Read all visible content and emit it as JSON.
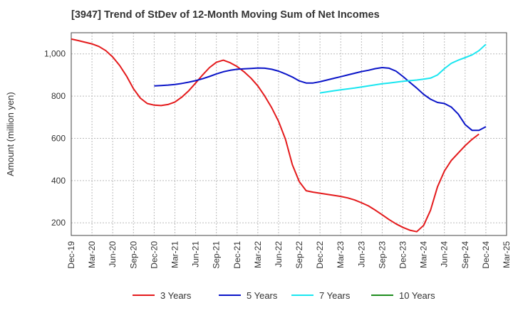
{
  "title": "[3947]  Trend of StDev of 12-Month Moving Sum of Net Incomes",
  "colors": {
    "3 Years": "#e41a1c",
    "5 Years": "#0a14c8",
    "7 Years": "#19e6f0",
    "10 Years": "#1e8c1e",
    "grid": "#bbbbbb",
    "axis": "#444444"
  },
  "chart_data": {
    "type": "line",
    "title": "[3947]  Trend of StDev of 12-Month Moving Sum of Net Incomes",
    "ylabel": "Amount (million yen)",
    "xlabel": "",
    "ylim": [
      140,
      1100
    ],
    "yticks": [
      200,
      400,
      600,
      800,
      "1,000"
    ],
    "xlim": [
      "2019-12",
      "2025-03"
    ],
    "xticks": [
      "Dec-19",
      "Mar-20",
      "Jun-20",
      "Sep-20",
      "Dec-20",
      "Mar-21",
      "Jun-21",
      "Sep-21",
      "Dec-21",
      "Mar-22",
      "Jun-22",
      "Sep-22",
      "Dec-22",
      "Mar-23",
      "Jun-23",
      "Sep-23",
      "Dec-23",
      "Mar-24",
      "Jun-24",
      "Sep-24",
      "Dec-24",
      "Mar-25"
    ],
    "grid": true,
    "legend_position": "bottom",
    "series": [
      {
        "name": "3 Years",
        "x": [
          "2019-12",
          "2020-01",
          "2020-02",
          "2020-03",
          "2020-04",
          "2020-05",
          "2020-06",
          "2020-07",
          "2020-08",
          "2020-09",
          "2020-10",
          "2020-11",
          "2020-12",
          "2021-01",
          "2021-02",
          "2021-03",
          "2021-04",
          "2021-05",
          "2021-06",
          "2021-07",
          "2021-08",
          "2021-09",
          "2021-10",
          "2021-11",
          "2021-12",
          "2022-01",
          "2022-02",
          "2022-03",
          "2022-04",
          "2022-05",
          "2022-06",
          "2022-07",
          "2022-08",
          "2022-09",
          "2022-10",
          "2022-11",
          "2022-12",
          "2023-01",
          "2023-02",
          "2023-03",
          "2023-04",
          "2023-05",
          "2023-06",
          "2023-07",
          "2023-08",
          "2023-09",
          "2023-10",
          "2023-11",
          "2023-12",
          "2024-01",
          "2024-02",
          "2024-03",
          "2024-04",
          "2024-05",
          "2024-06",
          "2024-07",
          "2024-08",
          "2024-09",
          "2024-10",
          "2024-11",
          "2024-12"
        ],
        "values": [
          1070,
          1063,
          1055,
          1047,
          1035,
          1015,
          985,
          945,
          895,
          835,
          790,
          765,
          757,
          755,
          760,
          772,
          795,
          825,
          862,
          900,
          935,
          960,
          970,
          958,
          940,
          915,
          885,
          848,
          800,
          745,
          680,
          595,
          475,
          395,
          352,
          345,
          340,
          335,
          330,
          325,
          318,
          308,
          295,
          280,
          260,
          238,
          215,
          195,
          178,
          165,
          158,
          188,
          260,
          370,
          445,
          495,
          530,
          565,
          595,
          620,
          null
        ],
        "values_note": null
      },
      {
        "name": "5 Years",
        "x": [
          "2020-12",
          "2021-01",
          "2021-02",
          "2021-03",
          "2021-04",
          "2021-05",
          "2021-06",
          "2021-07",
          "2021-08",
          "2021-09",
          "2021-10",
          "2021-11",
          "2021-12",
          "2022-01",
          "2022-02",
          "2022-03",
          "2022-04",
          "2022-05",
          "2022-06",
          "2022-07",
          "2022-08",
          "2022-09",
          "2022-10",
          "2022-11",
          "2022-12",
          "2023-01",
          "2023-02",
          "2023-03",
          "2023-04",
          "2023-05",
          "2023-06",
          "2023-07",
          "2023-08",
          "2023-09",
          "2023-10",
          "2023-11",
          "2023-12",
          "2024-01",
          "2024-02",
          "2024-03",
          "2024-04",
          "2024-05",
          "2024-06",
          "2024-07",
          "2024-08",
          "2024-09",
          "2024-10",
          "2024-11",
          "2024-12"
        ],
        "values": [
          848,
          850,
          852,
          855,
          860,
          866,
          873,
          882,
          893,
          905,
          915,
          922,
          927,
          929,
          931,
          933,
          932,
          927,
          918,
          905,
          890,
          872,
          862,
          862,
          868,
          876,
          884,
          892,
          900,
          908,
          916,
          922,
          930,
          935,
          932,
          918,
          893,
          865,
          838,
          808,
          785,
          770,
          765,
          748,
          715,
          665,
          638,
          638,
          655
        ]
      },
      {
        "name": "7 Years",
        "x": [
          "2022-12",
          "2023-01",
          "2023-02",
          "2023-03",
          "2023-04",
          "2023-05",
          "2023-06",
          "2023-07",
          "2023-08",
          "2023-09",
          "2023-10",
          "2023-11",
          "2023-12",
          "2024-01",
          "2024-02",
          "2024-03",
          "2024-04",
          "2024-05",
          "2024-06",
          "2024-07",
          "2024-08",
          "2024-09",
          "2024-10",
          "2024-11",
          "2024-12"
        ],
        "values": [
          815,
          820,
          825,
          830,
          834,
          838,
          843,
          848,
          853,
          858,
          862,
          866,
          870,
          873,
          876,
          880,
          885,
          900,
          930,
          955,
          970,
          982,
          995,
          1015,
          1045
        ]
      },
      {
        "name": "10 Years",
        "x": [],
        "values": []
      }
    ]
  }
}
